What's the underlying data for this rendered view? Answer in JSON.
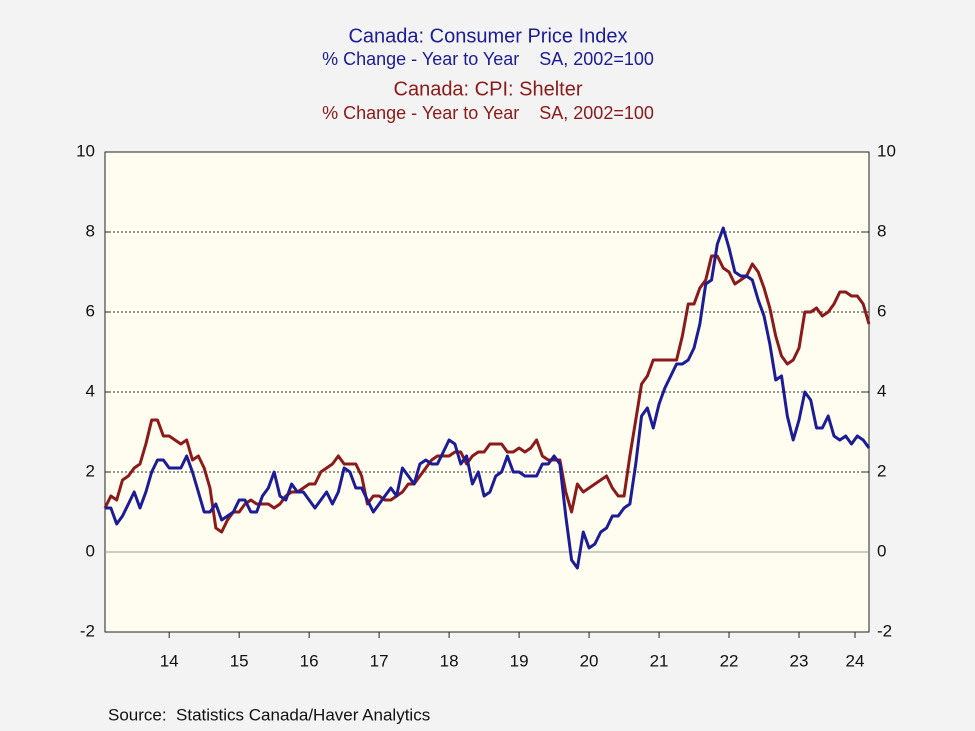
{
  "chart_data": {
    "type": "line",
    "source": "Source:  Statistics Canada/Haver Analytics",
    "x": [
      2013.583,
      2013.667,
      2013.75,
      2013.833,
      2013.917,
      2014,
      2014.083,
      2014.167,
      2014.25,
      2014.333,
      2014.417,
      2014.5,
      2014.583,
      2014.667,
      2014.75,
      2014.833,
      2014.917,
      2015,
      2015.083,
      2015.167,
      2015.25,
      2015.333,
      2015.417,
      2015.5,
      2015.583,
      2015.667,
      2015.75,
      2015.833,
      2015.917,
      2016,
      2016.083,
      2016.167,
      2016.25,
      2016.333,
      2016.417,
      2016.5,
      2016.583,
      2016.667,
      2016.75,
      2016.833,
      2016.917,
      2017,
      2017.083,
      2017.167,
      2017.25,
      2017.333,
      2017.417,
      2017.5,
      2017.583,
      2017.667,
      2017.75,
      2017.833,
      2017.917,
      2018,
      2018.083,
      2018.167,
      2018.25,
      2018.333,
      2018.417,
      2018.5,
      2018.583,
      2018.667,
      2018.75,
      2018.833,
      2018.917,
      2019,
      2019.083,
      2019.167,
      2019.25,
      2019.333,
      2019.417,
      2019.5,
      2019.583,
      2019.667,
      2019.75,
      2019.833,
      2019.917,
      2020,
      2020.083,
      2020.167,
      2020.25,
      2020.333,
      2020.417,
      2020.5,
      2020.583,
      2020.667,
      2020.75,
      2020.833,
      2020.917,
      2021,
      2021.083,
      2021.167,
      2021.25,
      2021.333,
      2021.417,
      2021.5,
      2021.583,
      2021.667,
      2021.75,
      2021.833,
      2021.917,
      2022,
      2022.083,
      2022.167,
      2022.25,
      2022.333,
      2022.417,
      2022.5,
      2022.583,
      2022.667,
      2022.75,
      2022.833,
      2022.917,
      2023,
      2023.083,
      2023.167,
      2023.25,
      2023.333,
      2023.417,
      2023.5,
      2023.583,
      2023.667,
      2023.75,
      2023.833,
      2023.917,
      2024,
      2024.083,
      2024.167,
      2024.25,
      2024.333,
      2024.417,
      2024.5
    ],
    "series": [
      {
        "name": "Canada: Consumer Price Index",
        "subtitle": "% Change - Year to Year    SA, 2002=100",
        "color": "#1c1c96",
        "values": [
          1.1,
          1.1,
          0.7,
          0.9,
          1.2,
          1.5,
          1.1,
          1.5,
          2.0,
          2.3,
          2.3,
          2.1,
          2.1,
          2.1,
          2.4,
          2.0,
          1.5,
          1.0,
          1.0,
          1.2,
          0.8,
          0.9,
          1.0,
          1.3,
          1.3,
          1.0,
          1.0,
          1.4,
          1.6,
          2.0,
          1.4,
          1.3,
          1.7,
          1.5,
          1.5,
          1.3,
          1.1,
          1.3,
          1.5,
          1.2,
          1.5,
          2.1,
          2.0,
          1.6,
          1.6,
          1.3,
          1.0,
          1.2,
          1.4,
          1.6,
          1.4,
          2.1,
          1.9,
          1.7,
          2.2,
          2.3,
          2.2,
          2.2,
          2.5,
          2.8,
          2.7,
          2.2,
          2.4,
          1.7,
          2.0,
          1.4,
          1.5,
          1.9,
          2.0,
          2.4,
          2.0,
          2.0,
          1.9,
          1.9,
          1.9,
          2.2,
          2.2,
          2.4,
          2.2,
          0.9,
          -0.2,
          -0.4,
          0.5,
          0.1,
          0.2,
          0.5,
          0.6,
          0.9,
          0.9,
          1.1,
          1.2,
          2.2,
          3.4,
          3.6,
          3.1,
          3.7,
          4.1,
          4.4,
          4.7,
          4.7,
          4.8,
          5.1,
          5.7,
          6.7,
          6.8,
          7.7,
          8.1,
          7.6,
          7.0,
          6.9,
          6.9,
          6.8,
          6.3,
          5.9,
          5.2,
          4.3,
          4.4,
          3.4,
          2.8,
          3.3,
          4.0,
          3.8,
          3.1,
          3.1,
          3.4,
          2.9,
          2.8,
          2.9,
          2.7,
          2.9,
          2.8,
          2.6
        ]
      },
      {
        "name": "Canada: CPI: Shelter",
        "subtitle": "% Change - Year to Year    SA, 2002=100",
        "color": "#8b1a1a",
        "values": [
          1.1,
          1.4,
          1.3,
          1.8,
          1.9,
          2.1,
          2.2,
          2.7,
          3.3,
          3.3,
          2.9,
          2.9,
          2.8,
          2.7,
          2.8,
          2.3,
          2.4,
          2.1,
          1.6,
          0.6,
          0.5,
          0.8,
          1.0,
          1.0,
          1.2,
          1.3,
          1.2,
          1.2,
          1.2,
          1.1,
          1.2,
          1.4,
          1.5,
          1.5,
          1.6,
          1.7,
          1.7,
          2.0,
          2.1,
          2.2,
          2.4,
          2.2,
          2.2,
          2.2,
          1.9,
          1.2,
          1.4,
          1.4,
          1.3,
          1.3,
          1.4,
          1.5,
          1.7,
          1.7,
          1.9,
          2.1,
          2.3,
          2.4,
          2.4,
          2.4,
          2.5,
          2.5,
          2.2,
          2.4,
          2.5,
          2.5,
          2.7,
          2.7,
          2.7,
          2.5,
          2.5,
          2.6,
          2.5,
          2.6,
          2.8,
          2.4,
          2.3,
          2.3,
          2.3,
          1.5,
          1.0,
          1.7,
          1.5,
          1.6,
          1.7,
          1.8,
          1.9,
          1.6,
          1.4,
          1.4,
          2.4,
          3.3,
          4.2,
          4.4,
          4.8,
          4.8,
          4.8,
          4.8,
          4.8,
          5.4,
          6.2,
          6.2,
          6.6,
          6.8,
          7.4,
          7.4,
          7.1,
          7.0,
          6.7,
          6.8,
          6.9,
          7.2,
          7.0,
          6.6,
          6.1,
          5.4,
          4.9,
          4.7,
          4.8,
          5.1,
          6.0,
          6.0,
          6.1,
          5.9,
          6.0,
          6.2,
          6.5,
          6.5,
          6.4,
          6.4,
          6.2,
          5.7
        ]
      }
    ],
    "xlim": [
      2013.583,
      2024.5
    ],
    "xticks": [
      {
        "value": 2014.5,
        "label": "14"
      },
      {
        "value": 2015.5,
        "label": "15"
      },
      {
        "value": 2016.5,
        "label": "16"
      },
      {
        "value": 2017.5,
        "label": "17"
      },
      {
        "value": 2018.5,
        "label": "18"
      },
      {
        "value": 2019.5,
        "label": "19"
      },
      {
        "value": 2020.5,
        "label": "20"
      },
      {
        "value": 2021.5,
        "label": "21"
      },
      {
        "value": 2022.5,
        "label": "22"
      },
      {
        "value": 2023.5,
        "label": "23"
      },
      {
        "value": 2024.3,
        "label": "24"
      }
    ],
    "ylim": [
      -2,
      10
    ],
    "yticks": [
      -2,
      0,
      2,
      4,
      6,
      8,
      10
    ],
    "grid": true
  }
}
